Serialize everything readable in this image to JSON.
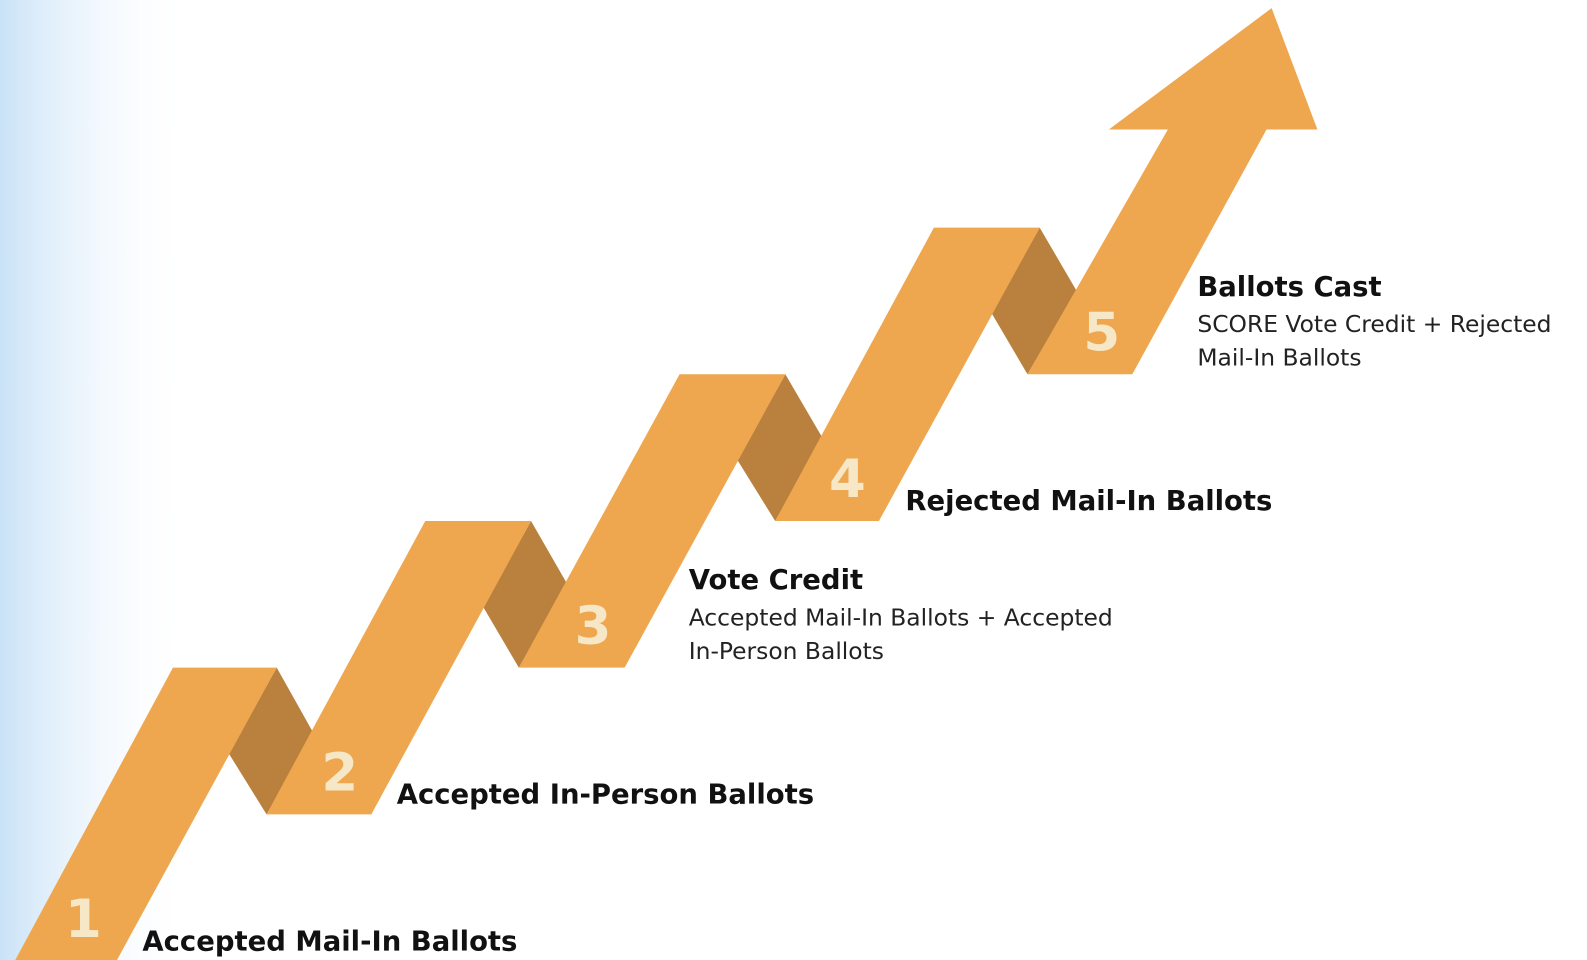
{
  "steps": [
    {
      "number": "1",
      "title": "Accepted Mail-In Ballots"
    },
    {
      "number": "2",
      "title": "Accepted In-Person Ballots"
    },
    {
      "number": "3",
      "title": "Vote Credit",
      "description": [
        "Accepted Mail-In Ballots + Accepted",
        "In-Person Ballots"
      ]
    },
    {
      "number": "4",
      "title": "Rejected Mail-In Ballots"
    },
    {
      "number": "5",
      "title": "Ballots Cast",
      "description": [
        "SCORE Vote Credit + Rejected",
        "Mail-In Ballots"
      ]
    }
  ]
}
